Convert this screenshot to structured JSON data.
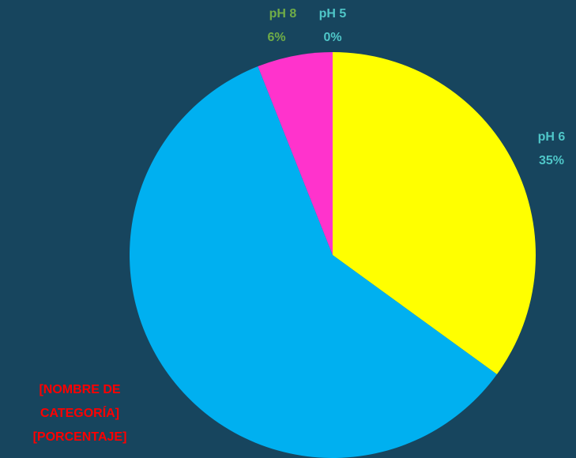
{
  "chart_data": {
    "type": "pie",
    "slices": [
      {
        "label": "pH 5",
        "value": 0,
        "percent_label": "0%",
        "color": "#17e3e6",
        "label_color": "#4fc6c8"
      },
      {
        "label": "pH 6",
        "value": 35,
        "percent_label": "35%",
        "color": "#ffff00",
        "label_color": "#4fc6c8"
      },
      {
        "label": "[NOMBRE DE CATEGORÍA]",
        "value": 59,
        "percent_label": "[PORCENTAJE]",
        "color": "#00b0f0",
        "label_color": "#ff0000"
      },
      {
        "label": "pH 8",
        "value": 6,
        "percent_label": "6%",
        "color": "#ff33cc",
        "label_color": "#70ad47"
      }
    ]
  }
}
